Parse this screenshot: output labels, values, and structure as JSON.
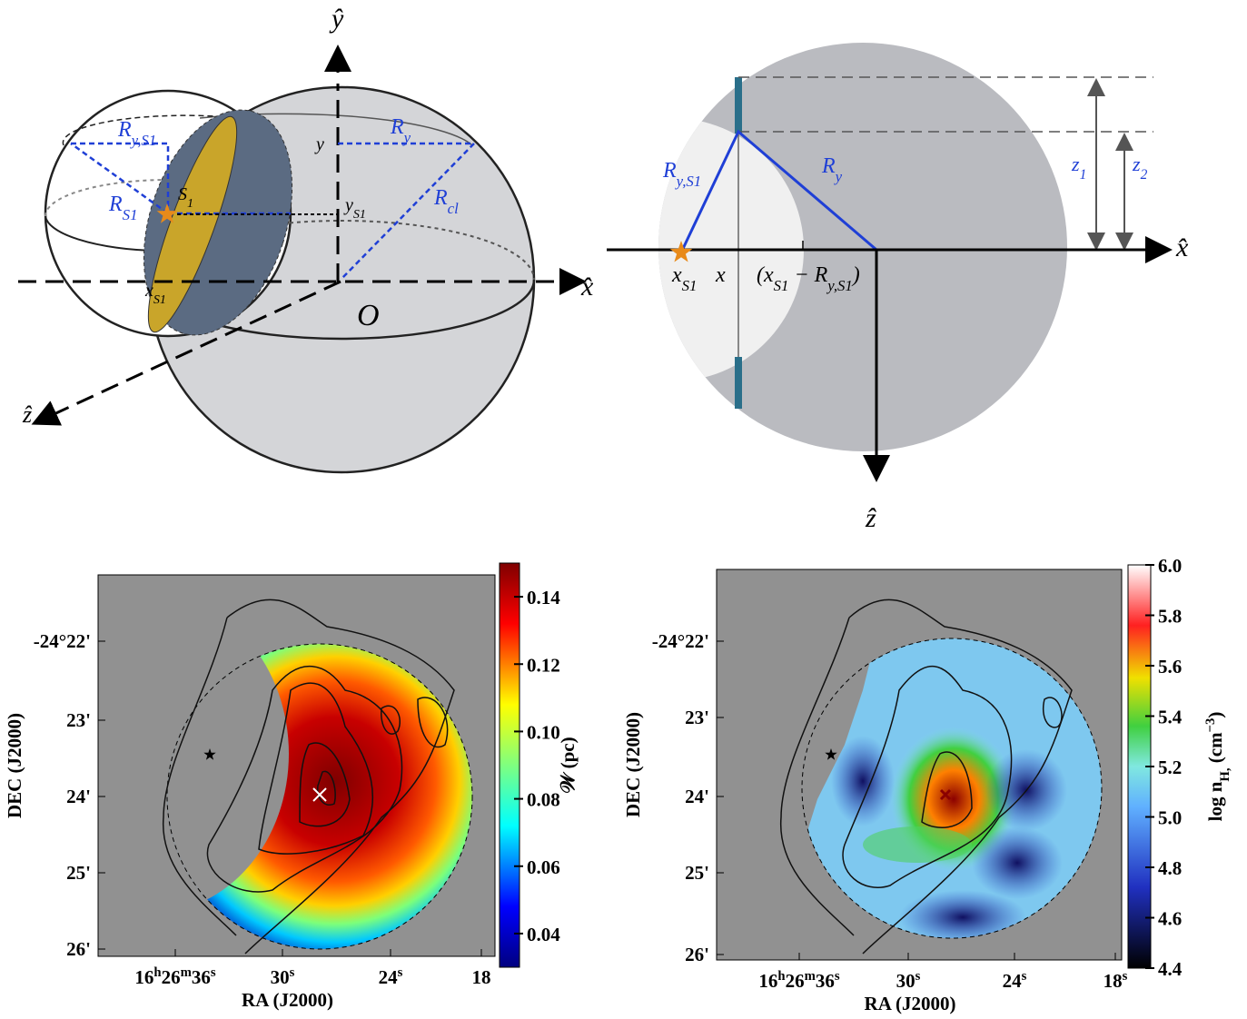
{
  "diagram_a": {
    "labels": [
      [
        "ŷ"
      ],
      [
        "x̂"
      ],
      [
        "ẑ"
      ],
      [
        "O"
      ],
      [
        "R",
        "y,S1"
      ],
      [
        "R",
        "y"
      ],
      [
        "R",
        "S1"
      ],
      [
        "R",
        "cl"
      ],
      [
        "S",
        "1"
      ],
      [
        "y"
      ],
      [
        "y",
        "S1"
      ],
      [
        "x",
        "S1"
      ]
    ]
  },
  "diagram_b": {
    "labels": [
      [
        "R",
        "y,S1"
      ],
      [
        "R",
        "y"
      ],
      [
        "z",
        "1"
      ],
      [
        "z",
        "2"
      ],
      [
        "x̂"
      ],
      [
        "ẑ"
      ],
      [
        "x",
        "S1"
      ],
      [
        "x"
      ],
      [
        "(x",
        "S1",
        " − R",
        "y,S1",
        ")"
      ]
    ]
  },
  "map_left": {
    "x_title": "RA (J2000)",
    "y_title": "DEC (J2000)",
    "x_ticks": [
      [
        "16",
        "h",
        "26",
        "m",
        "36",
        "s"
      ],
      [
        "30",
        "s"
      ],
      [
        "24",
        "s"
      ],
      [
        "18"
      ]
    ],
    "y_ticks": [
      "-24°22'",
      "23'",
      "24'",
      "25'",
      "26'"
    ],
    "colorbar": {
      "label": [
        "𝒲 (pc)"
      ],
      "lim": [
        0.03,
        0.15
      ],
      "ticks": [
        0.04,
        0.06,
        0.08,
        {
          "value": 0.1,
          "label": "0.10"
        },
        0.12,
        0.14
      ]
    }
  },
  "map_right": {
    "x_title": "RA (J2000)",
    "y_title": "DEC (J2000)",
    "x_ticks": [
      [
        "16",
        "h",
        "26",
        "m",
        "36",
        "s"
      ],
      [
        "30",
        "s"
      ],
      [
        "24",
        "s"
      ],
      [
        "18",
        "s"
      ]
    ],
    "y_ticks": [
      "-24°22'",
      "23'",
      "24'",
      "25'",
      "26'"
    ],
    "colorbar": {
      "label": [
        "log n",
        "H,",
        " (cm",
        "−3",
        ")"
      ],
      "lim": [
        4.4,
        6.0
      ],
      "ticks": [
        4.4,
        4.6,
        4.8,
        {
          "value": 5,
          "label": "5.0"
        },
        5.2,
        5.4,
        5.6,
        5.8,
        {
          "value": 6,
          "label": "6.0"
        }
      ]
    }
  }
}
